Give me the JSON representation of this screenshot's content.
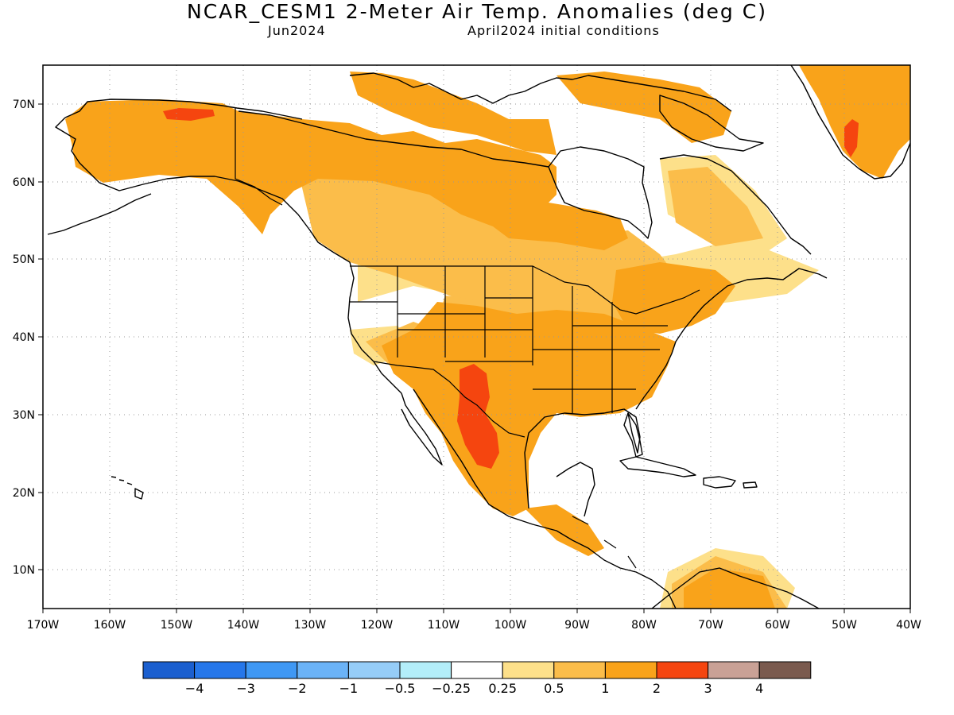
{
  "title": "NCAR_CESM1 2-Meter Air Temp. Anomalies (deg C)",
  "subtitle_left": "Jun2024",
  "subtitle_right": "April2024 initial conditions",
  "lon_labels": [
    "170W",
    "160W",
    "150W",
    "140W",
    "130W",
    "120W",
    "110W",
    "100W",
    "90W",
    "80W",
    "70W",
    "60W",
    "50W",
    "40W"
  ],
  "lat_labels": [
    "70N",
    "60N",
    "50N",
    "40N",
    "30N",
    "20N",
    "10N"
  ],
  "colorbar": {
    "colors": [
      "#1b5fcf",
      "#2677ea",
      "#3f98f4",
      "#6bb3f7",
      "#96cdf8",
      "#b3eef9",
      "#ffffff",
      "#fde08a",
      "#fbbd4a",
      "#f9a31a",
      "#f5450f",
      "#c9a196",
      "#7a5a4e"
    ],
    "labels": [
      "−4",
      "−3",
      "−2",
      "−1",
      "−0.5",
      "−0.25",
      "0.25",
      "0.5",
      "1",
      "2",
      "3",
      "4"
    ]
  },
  "colors": {
    "anom_025_05": "#fde08a",
    "anom_05_1": "#fbbd4a",
    "anom_1_2": "#f9a31a",
    "anom_2_3": "#f5450f"
  }
}
